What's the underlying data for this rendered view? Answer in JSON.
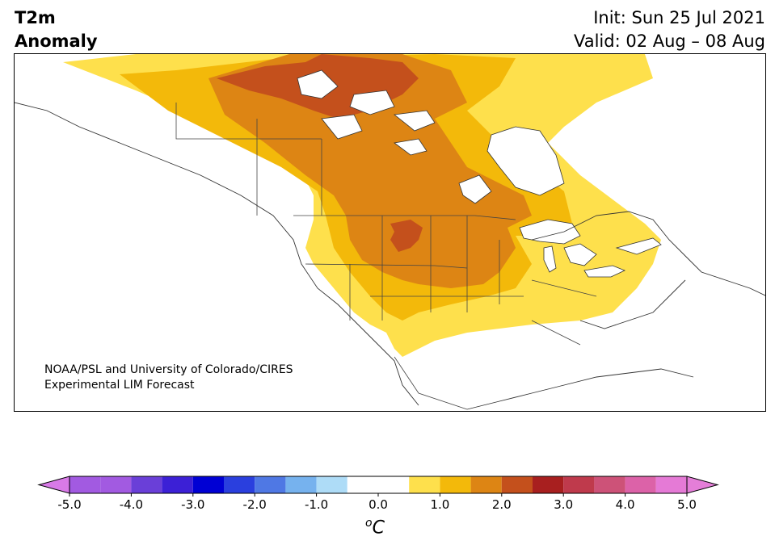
{
  "header": {
    "title_line1": "T2m",
    "title_line2": "Anomaly",
    "init_text": "Init: Sun 25 Jul 2021",
    "valid_text": "Valid: 02 Aug – 08 Aug"
  },
  "credit": {
    "line1": "NOAA/PSL and University of Colorado/CIRES",
    "line2": "Experimental LIM Forecast"
  },
  "colorbar": {
    "unit_symbol": "o",
    "unit_letter": "C",
    "tick_labels": [
      "-5.0",
      "-4.0",
      "-3.0",
      "-2.0",
      "-1.0",
      "0.0",
      "1.0",
      "2.0",
      "3.0",
      "4.0",
      "5.0"
    ],
    "tick_values": [
      -5,
      -4,
      -3,
      -2,
      -1,
      0,
      1,
      2,
      3,
      4,
      5
    ],
    "min": -5,
    "max": 5,
    "extend": "both",
    "bins": [
      {
        "lo": -5.0,
        "hi": -4.5,
        "color": "#a25ae1"
      },
      {
        "lo": -4.5,
        "hi": -4.0,
        "color": "#a25ae1"
      },
      {
        "lo": -4.0,
        "hi": -3.5,
        "color": "#6a3fd8"
      },
      {
        "lo": -3.5,
        "hi": -3.0,
        "color": "#3c20d6"
      },
      {
        "lo": -3.0,
        "hi": -2.5,
        "color": "#0000d4"
      },
      {
        "lo": -2.5,
        "hi": -2.0,
        "color": "#2a3fde"
      },
      {
        "lo": -2.0,
        "hi": -1.5,
        "color": "#4f78e4"
      },
      {
        "lo": -1.5,
        "hi": -1.0,
        "color": "#76b2ee"
      },
      {
        "lo": -1.0,
        "hi": -0.5,
        "color": "#aedcf7"
      },
      {
        "lo": -0.5,
        "hi": 0.5,
        "color": "#ffffff"
      },
      {
        "lo": 0.5,
        "hi": 1.0,
        "color": "#fee04c"
      },
      {
        "lo": 1.0,
        "hi": 1.5,
        "color": "#f3b90a"
      },
      {
        "lo": 1.5,
        "hi": 2.0,
        "color": "#dd8514"
      },
      {
        "lo": 2.0,
        "hi": 2.5,
        "color": "#c4501c"
      },
      {
        "lo": 2.5,
        "hi": 3.0,
        "color": "#a81f1f"
      },
      {
        "lo": 3.0,
        "hi": 3.5,
        "color": "#bf3a4c"
      },
      {
        "lo": 3.5,
        "hi": 4.0,
        "color": "#cd5278"
      },
      {
        "lo": 4.0,
        "hi": 4.5,
        "color": "#dc62a8"
      },
      {
        "lo": 4.5,
        "hi": 5.0,
        "color": "#e57ad6"
      }
    ],
    "under_color": "#d87ae7",
    "over_color": "#e47ed8"
  },
  "map": {
    "region": "North America",
    "field": "2m temperature anomaly",
    "colors": {
      "anom_1": "#fee04c",
      "anom_1_5": "#f3b90a",
      "anom_2": "#dd8514",
      "anom_2_5": "#c4501c",
      "land": "#ffffff",
      "border": "#333333"
    }
  }
}
